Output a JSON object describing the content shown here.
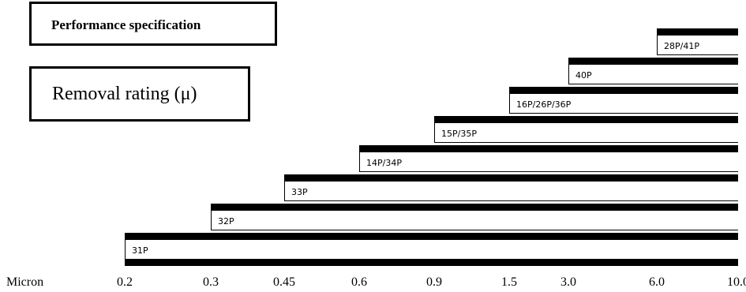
{
  "header": {
    "title": "Performance specification",
    "subtitle": "Removal rating (μ)"
  },
  "axis": {
    "label": "Micron",
    "ticks": [
      "0.2",
      "0.3",
      "0.45",
      "0.6",
      "0.9",
      "1.5",
      "3.0",
      "6.0",
      "10.0"
    ]
  },
  "products": [
    {
      "label": "31P",
      "min_micron": "0.2"
    },
    {
      "label": "32P",
      "min_micron": "0.3"
    },
    {
      "label": "33P",
      "min_micron": "0.45"
    },
    {
      "label": "14P/34P",
      "min_micron": "0.6"
    },
    {
      "label": "15P/35P",
      "min_micron": "0.9"
    },
    {
      "label": "16P/26P/36P",
      "min_micron": "1.5"
    },
    {
      "label": "40P",
      "min_micron": "3.0"
    },
    {
      "label": "28P/41P",
      "min_micron": "6.0"
    }
  ],
  "max_micron": "10.0"
}
